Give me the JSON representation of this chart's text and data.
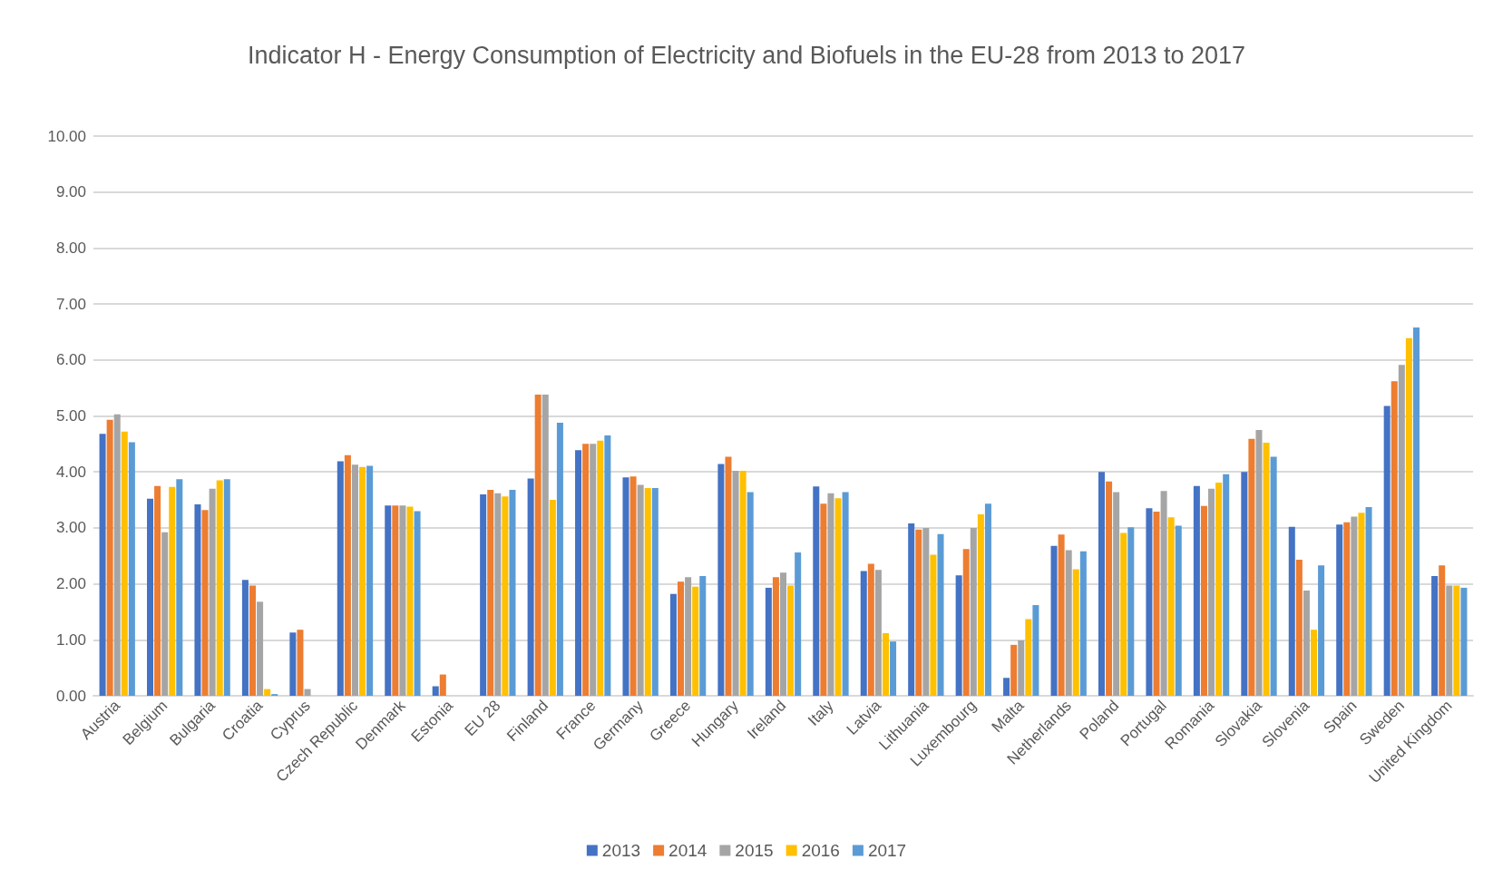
{
  "chart_data": {
    "type": "bar",
    "title": "Indicator H - Energy Consumption of Electricity and Biofuels in the EU-28 from 2013 to 2017",
    "categories": [
      "Austria",
      "Belgium",
      "Bulgaria",
      "Croatia",
      "Cyprus",
      "Czech Republic",
      "Denmark",
      "Estonia",
      "EU 28",
      "Finland",
      "France",
      "Germany",
      "Greece",
      "Hungary",
      "Ireland",
      "Italy",
      "Latvia",
      "Lithuania",
      "Luxembourg",
      "Malta",
      "Netherlands",
      "Poland",
      "Portugal",
      "Romania",
      "Slovakia",
      "Slovenia",
      "Spain",
      "Sweden",
      "United Kingdom"
    ],
    "series": [
      {
        "name": "2013",
        "color": "#4472c4",
        "values": [
          4.68,
          3.52,
          3.42,
          2.07,
          1.13,
          4.19,
          3.4,
          0.17,
          3.6,
          3.88,
          4.39,
          3.9,
          1.82,
          4.14,
          1.93,
          3.74,
          2.23,
          3.08,
          2.15,
          0.32,
          2.68,
          4.0,
          3.35,
          3.75,
          4.0,
          3.02,
          3.06,
          5.18,
          2.14
        ]
      },
      {
        "name": "2014",
        "color": "#ed7d31",
        "values": [
          4.93,
          3.75,
          3.32,
          1.97,
          1.18,
          4.3,
          3.4,
          0.38,
          3.68,
          5.38,
          4.5,
          3.92,
          2.04,
          4.27,
          2.12,
          3.43,
          2.36,
          2.97,
          2.62,
          0.91,
          2.88,
          3.83,
          3.29,
          3.39,
          4.59,
          2.43,
          3.1,
          5.62,
          2.33
        ]
      },
      {
        "name": "2015",
        "color": "#a5a5a5",
        "values": [
          5.03,
          2.92,
          3.7,
          1.68,
          0.12,
          4.13,
          3.4,
          0,
          3.62,
          5.38,
          4.5,
          3.77,
          2.12,
          4.02,
          2.2,
          3.62,
          2.25,
          3.0,
          3.0,
          0.99,
          2.6,
          3.64,
          3.66,
          3.7,
          4.75,
          1.88,
          3.2,
          5.91,
          1.97
        ]
      },
      {
        "name": "2016",
        "color": "#ffc000",
        "values": [
          4.72,
          3.73,
          3.85,
          0.12,
          0,
          4.09,
          3.38,
          0,
          3.56,
          3.5,
          4.56,
          3.71,
          1.95,
          4.02,
          1.97,
          3.53,
          1.12,
          2.52,
          3.24,
          1.37,
          2.26,
          2.91,
          3.19,
          3.81,
          4.52,
          1.18,
          3.27,
          6.39,
          1.97
        ]
      },
      {
        "name": "2017",
        "color": "#5b9bd5",
        "values": [
          4.53,
          3.87,
          3.87,
          0.03,
          0,
          4.11,
          3.3,
          0,
          3.68,
          4.88,
          4.65,
          3.71,
          2.14,
          3.64,
          2.56,
          3.64,
          0.97,
          2.89,
          3.43,
          1.62,
          2.58,
          3.01,
          3.04,
          3.96,
          4.27,
          2.33,
          3.37,
          6.58,
          1.93
        ]
      }
    ],
    "ylim": [
      0,
      10
    ],
    "yticks": [
      {
        "value": 0,
        "label": "0.00"
      },
      {
        "value": 1,
        "label": "1.00"
      },
      {
        "value": 2,
        "label": "2.00"
      },
      {
        "value": 3,
        "label": "3.00"
      },
      {
        "value": 4,
        "label": "4.00"
      },
      {
        "value": 5,
        "label": "5.00"
      },
      {
        "value": 6,
        "label": "6.00"
      },
      {
        "value": 7,
        "label": "7.00"
      },
      {
        "value": 8,
        "label": "8.00"
      },
      {
        "value": 9,
        "label": "9.00"
      },
      {
        "value": 10,
        "label": "10.00"
      }
    ],
    "grid": "y",
    "legend": "bottom"
  }
}
